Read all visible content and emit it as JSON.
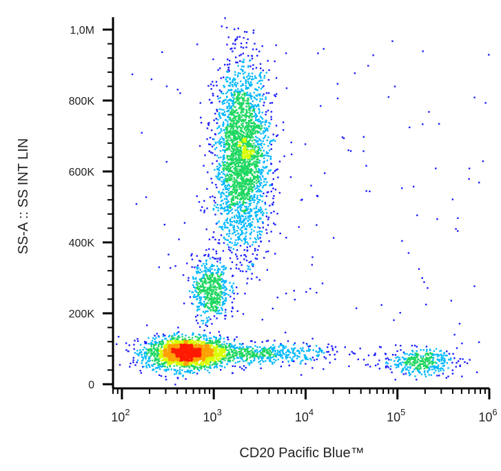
{
  "chart_data": {
    "type": "scatter",
    "subtype": "density-dot-plot",
    "xlabel": "CD20 Pacific Blue™",
    "ylabel": "SS-A :: SS INT LIN",
    "x_scale": "log",
    "y_scale": "linear",
    "xlim": [
      80,
      1000000
    ],
    "ylim": [
      0,
      1000000
    ],
    "x_ticks": [
      {
        "value": 100,
        "base": "10",
        "exp": "2"
      },
      {
        "value": 1000,
        "base": "10",
        "exp": "3"
      },
      {
        "value": 10000,
        "base": "10",
        "exp": "4"
      },
      {
        "value": 100000,
        "base": "10",
        "exp": "5"
      },
      {
        "value": 1000000,
        "base": "10",
        "exp": "6"
      }
    ],
    "y_ticks": [
      {
        "value": 0,
        "label": "0"
      },
      {
        "value": 200000,
        "label": "200K"
      },
      {
        "value": 400000,
        "label": "400K"
      },
      {
        "value": 600000,
        "label": "600K"
      },
      {
        "value": 800000,
        "label": "800K"
      },
      {
        "value": 1000000,
        "label": "1,0M"
      }
    ],
    "grid": false,
    "populations": [
      {
        "x_center": 500,
        "y_center": 90000,
        "x_spread_decades": 0.22,
        "y_spread": 22000,
        "count": 2200
      },
      {
        "x_center": 900,
        "y_center": 270000,
        "x_spread_decades": 0.1,
        "y_spread": 45000,
        "count": 550
      },
      {
        "x_center": 2000,
        "y_center": 640000,
        "x_spread_decades": 0.15,
        "y_spread": 130000,
        "count": 2600
      },
      {
        "x_center": 3000,
        "y_center": 90000,
        "x_spread_decades": 0.4,
        "y_spread": 15000,
        "count": 500
      },
      {
        "x_center": 170000,
        "y_center": 65000,
        "x_spread_decades": 0.2,
        "y_spread": 18000,
        "count": 380
      }
    ],
    "color_scale": [
      "#1a1aff",
      "#00b8ff",
      "#1ed760",
      "#d8ff00",
      "#ffa000",
      "#ff1a00"
    ]
  }
}
